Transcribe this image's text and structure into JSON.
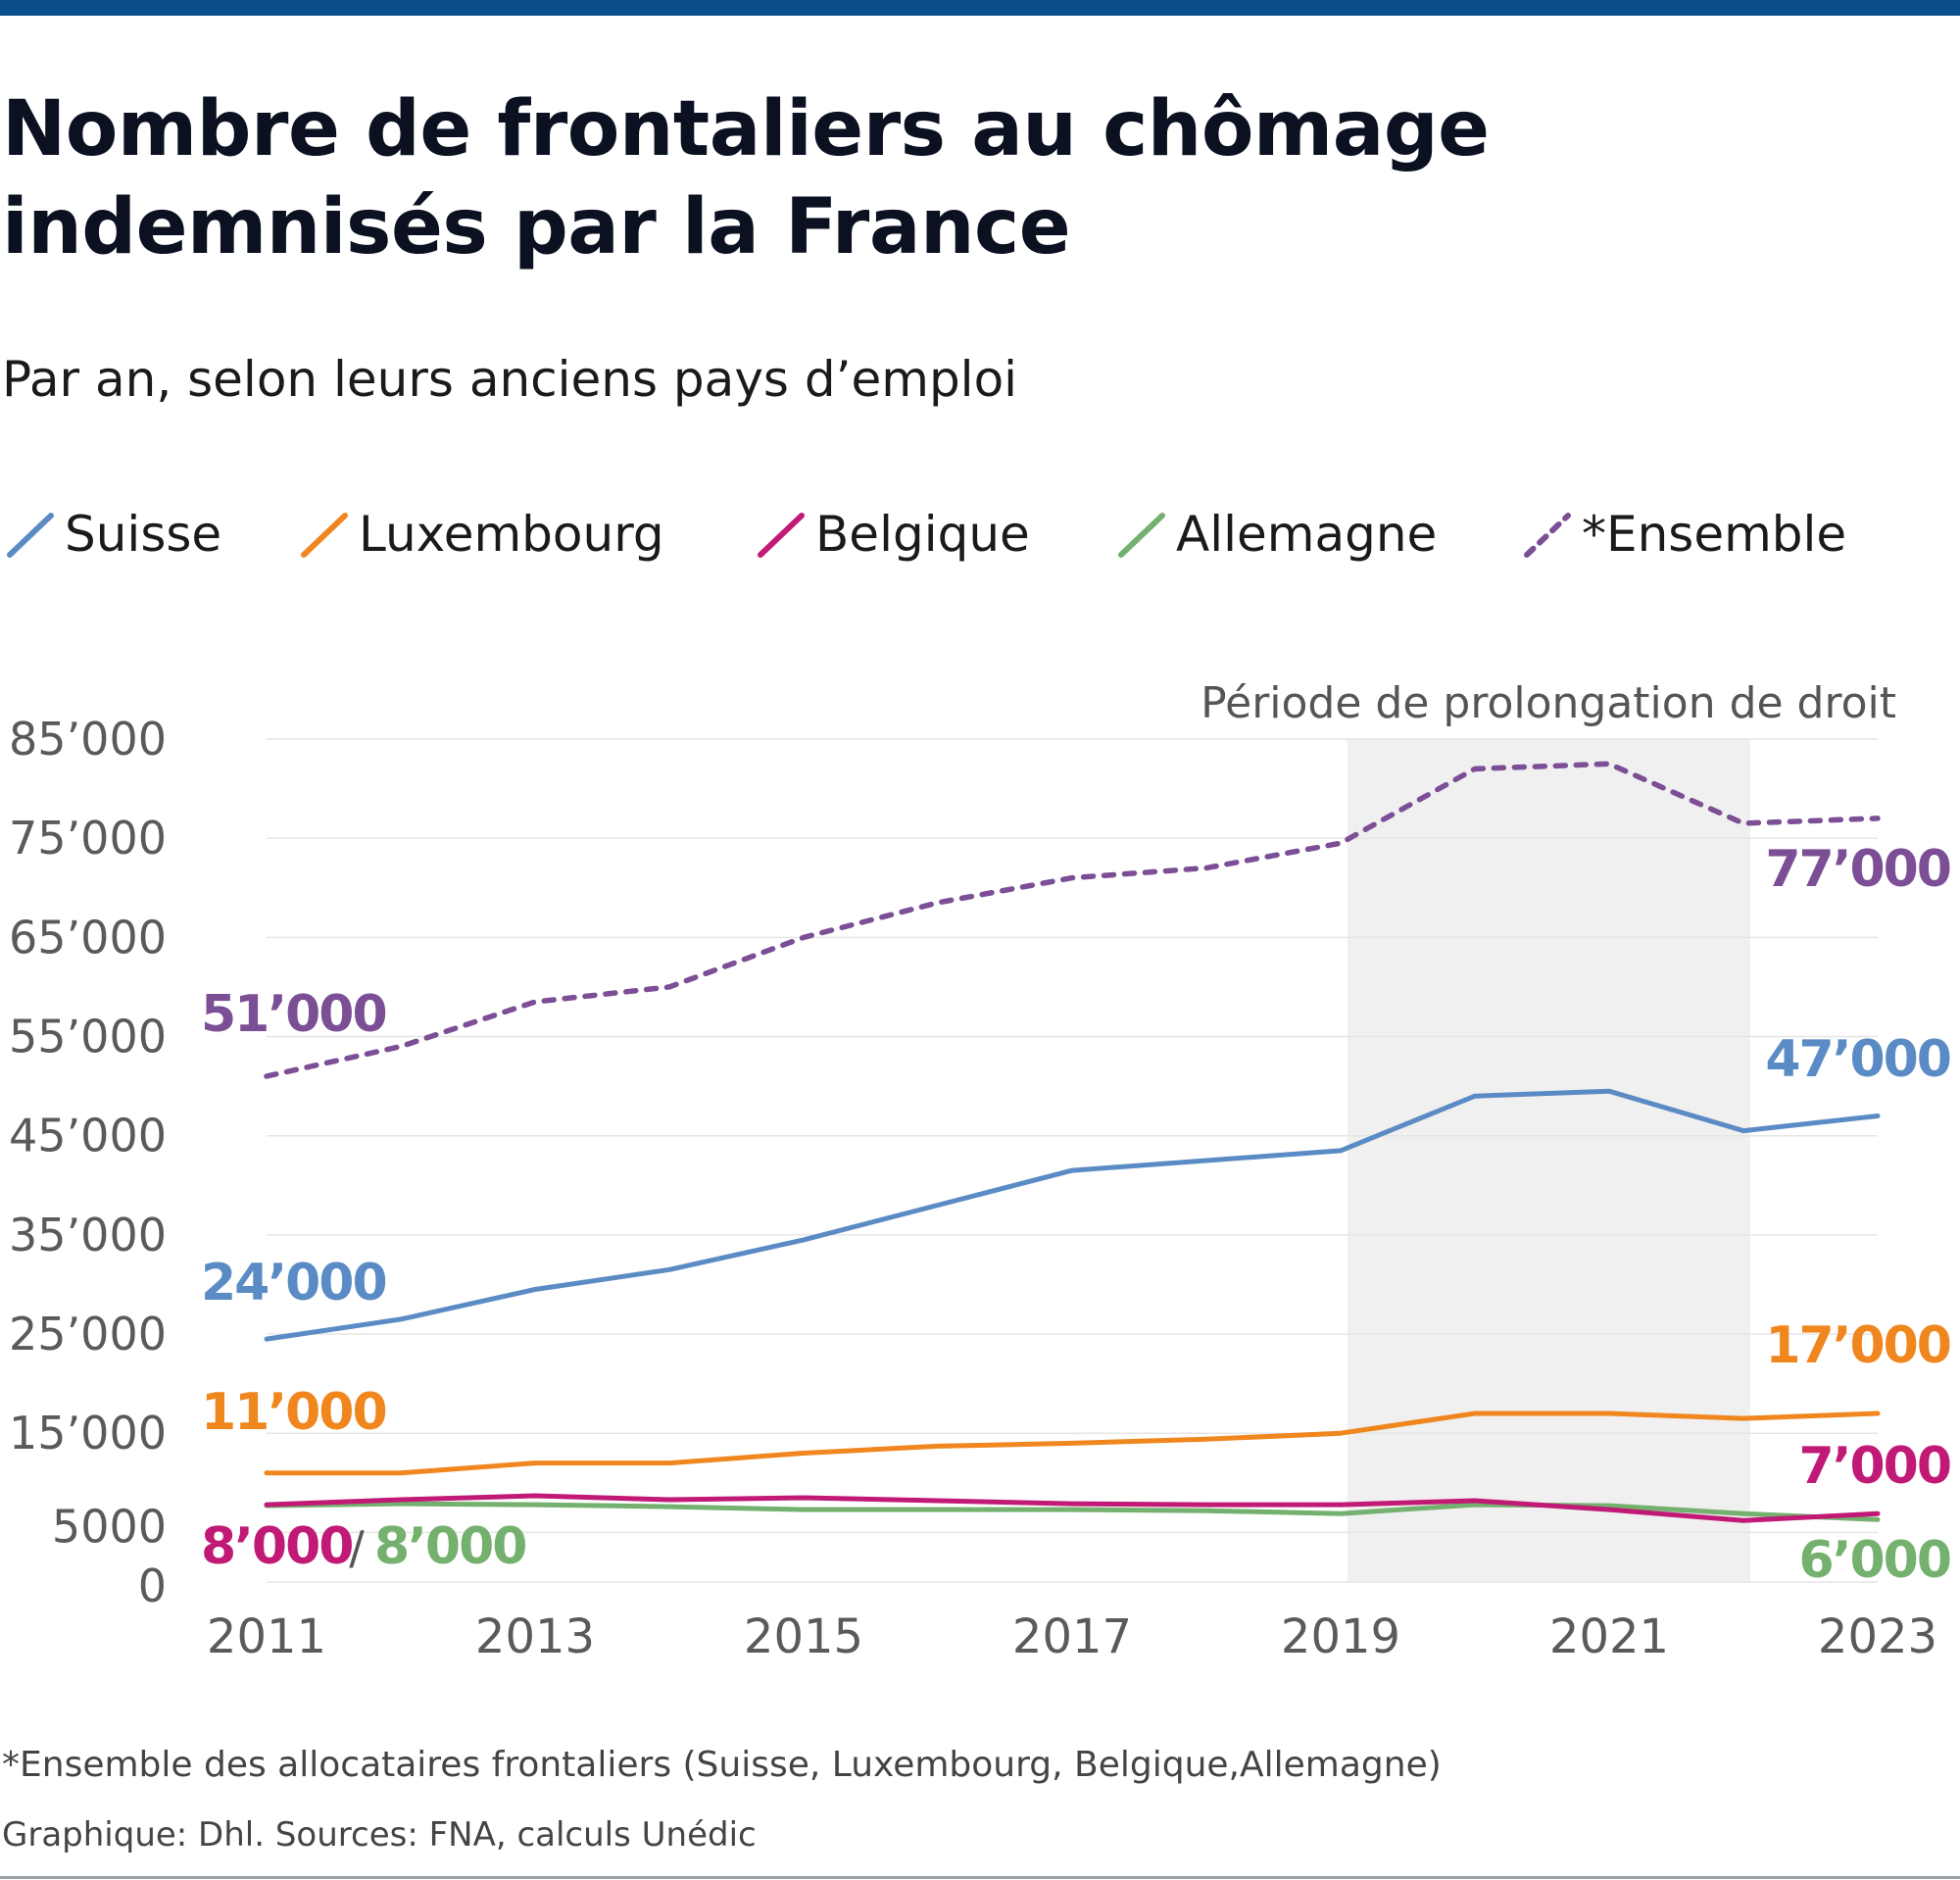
{
  "title": "Nombre de frontaliers au chômage indemnisés par la France",
  "subtitle": "Par an, selon leurs anciens pays d’emploi",
  "legend": [
    {
      "label": "Suisse",
      "color": "#5b8bc5",
      "dashed": false
    },
    {
      "label": "Luxembourg",
      "color": "#f0861e",
      "dashed": false
    },
    {
      "label": "Belgique",
      "color": "#c01a76",
      "dashed": false
    },
    {
      "label": "Allemagne",
      "color": "#74b06e",
      "dashed": false
    },
    {
      "label": "*Ensemble",
      "color": "#7b4e96",
      "dashed": true
    }
  ],
  "footnote": "*Ensemble des allocataires frontaliers (Suisse, Luxembourg, Belgique,Allemagne)",
  "credit": "Graphique: Dhl. Sources: FNA, calculs Unédic",
  "chart_data": {
    "type": "line",
    "title": "Nombre de frontaliers au chômage indemnisés par la France",
    "subtitle": "Par an, selon leurs anciens pays d’emploi",
    "xlabel": "",
    "ylabel": "",
    "xlim": [
      2011,
      2023
    ],
    "ylim": [
      0,
      85000
    ],
    "x_ticks": [
      2011,
      2013,
      2015,
      2017,
      2019,
      2021,
      2023
    ],
    "x_tick_labels": [
      "2011",
      "2013",
      "2015",
      "2017",
      "2019",
      "2021",
      "2023"
    ],
    "y_ticks": [
      0,
      5000,
      15000,
      25000,
      35000,
      45000,
      55000,
      65000,
      75000,
      85000
    ],
    "y_tick_labels": [
      "0",
      "5000",
      "15’000",
      "25’000",
      "35’000",
      "45’000",
      "55’000",
      "65’000",
      "75’000",
      "85’000"
    ],
    "grid": "horizontal",
    "shaded_region": {
      "x_start": 2019.05,
      "x_end": 2022.05,
      "label": "Période de prolongation de droit"
    },
    "x": [
      2011,
      2012,
      2013,
      2014,
      2015,
      2016,
      2017,
      2018,
      2019,
      2020,
      2021,
      2022,
      2023
    ],
    "series": [
      {
        "name": "Suisse",
        "color": "#5b8bc5",
        "dashed": false,
        "values": [
          24500,
          26500,
          29500,
          31500,
          34500,
          38000,
          41500,
          42500,
          43500,
          49000,
          49500,
          45500,
          47000
        ],
        "start_label": "24’000",
        "end_label": "47’000"
      },
      {
        "name": "Luxembourg",
        "color": "#f0861e",
        "dashed": false,
        "values": [
          11000,
          11000,
          12000,
          12000,
          13000,
          13700,
          14000,
          14400,
          15000,
          17000,
          17000,
          16500,
          17000
        ],
        "start_label": "11’000",
        "end_label": "17’000"
      },
      {
        "name": "Belgique",
        "color": "#c01a76",
        "dashed": false,
        "values": [
          7800,
          8300,
          8700,
          8300,
          8500,
          8200,
          7900,
          7800,
          7800,
          8200,
          7300,
          6200,
          6900
        ],
        "start_label": "8’000",
        "end_label": "7’000"
      },
      {
        "name": "Allemagne",
        "color": "#74b06e",
        "dashed": false,
        "values": [
          7700,
          7900,
          7800,
          7600,
          7300,
          7300,
          7300,
          7200,
          6900,
          7800,
          7700,
          6900,
          6300
        ],
        "start_label": "8’000",
        "end_label": "6’000"
      },
      {
        "name": "*Ensemble",
        "color": "#7b4e96",
        "dashed": true,
        "values": [
          51000,
          54000,
          58500,
          60000,
          65000,
          68500,
          71000,
          72000,
          74500,
          82000,
          82500,
          76500,
          77000
        ],
        "start_label": "51’000",
        "end_label": "77’000"
      }
    ],
    "start_label_separator": "/"
  }
}
